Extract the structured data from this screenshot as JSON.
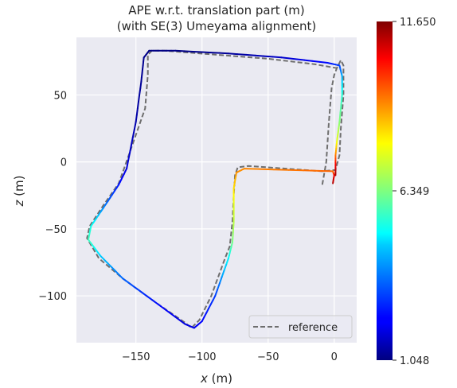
{
  "chart_data": {
    "type": "line",
    "title": "APE w.r.t. translation part (m)",
    "subtitle": "(with SE(3) Umeyama alignment)",
    "xlabel_var": "x",
    "xlabel_unit": "(m)",
    "ylabel_var": "z",
    "ylabel_unit": "(m)",
    "xlim": [
      -195,
      17
    ],
    "ylim": [
      -135,
      93
    ],
    "xticks": [
      -150,
      -100,
      -50,
      0
    ],
    "xtick_labels": [
      "−150",
      "−100",
      "−50",
      "0"
    ],
    "yticks": [
      50,
      0,
      -50,
      -100
    ],
    "ytick_labels": [
      "50",
      "0",
      "−50",
      "−100"
    ],
    "grid": true,
    "legend": {
      "placement": "lower-right",
      "entries": [
        "reference"
      ]
    },
    "colorbar": {
      "min": 1.048,
      "max": 11.65,
      "tick_labels": [
        "11.650",
        "6.349",
        "1.048"
      ],
      "colormap": "jet"
    },
    "series": [
      {
        "name": "reference",
        "style": "dashed",
        "color": "#6e6e6e",
        "points": [
          [
            -9,
            -17
          ],
          [
            -6,
            0
          ],
          [
            -4,
            30
          ],
          [
            -2,
            55
          ],
          [
            0,
            65
          ],
          [
            2,
            70
          ],
          [
            5,
            76
          ],
          [
            7,
            72
          ],
          [
            7,
            50
          ],
          [
            5,
            25
          ],
          [
            4,
            5
          ],
          [
            1,
            -6
          ],
          [
            -9,
            -7
          ],
          [
            -65,
            -3
          ],
          [
            -73,
            -4
          ],
          [
            -75,
            -10
          ],
          [
            -76,
            -25
          ],
          [
            -77,
            -45
          ],
          [
            -79,
            -63
          ],
          [
            -83,
            -73
          ],
          [
            -93,
            -100
          ],
          [
            -102,
            -118
          ],
          [
            -108,
            -124
          ],
          [
            -113,
            -120
          ],
          [
            -135,
            -105
          ],
          [
            -160,
            -87
          ],
          [
            -178,
            -72
          ],
          [
            -187,
            -57
          ],
          [
            -185,
            -48
          ],
          [
            -175,
            -33
          ],
          [
            -163,
            -16
          ],
          [
            -159,
            -5
          ],
          [
            -143,
            40
          ],
          [
            -141,
            65
          ],
          [
            -141,
            80
          ],
          [
            -138,
            83
          ],
          [
            -128,
            83
          ],
          [
            -50,
            77
          ],
          [
            -15,
            73
          ],
          [
            2,
            70
          ]
        ]
      },
      {
        "name": "",
        "style": "colored",
        "points": [
          [
            -1,
            -16,
            11.2
          ],
          [
            0,
            -10,
            10.5
          ],
          [
            -1,
            -7,
            9.3
          ],
          [
            -68,
            -5,
            8.9
          ],
          [
            -74,
            -8,
            8.8
          ],
          [
            -76,
            -20,
            8.0
          ],
          [
            -76,
            -32,
            7.4
          ],
          [
            -76,
            -45,
            7.0
          ],
          [
            -77,
            -60,
            6.3
          ],
          [
            -80,
            -72,
            5.0
          ],
          [
            -90,
            -100,
            3.0
          ],
          [
            -100,
            -119,
            2.4
          ],
          [
            -106,
            -124,
            2.2
          ],
          [
            -113,
            -121,
            2.0
          ],
          [
            -135,
            -105,
            2.5
          ],
          [
            -160,
            -87,
            3.4
          ],
          [
            -177,
            -70,
            4.5
          ],
          [
            -186,
            -58,
            5.7
          ],
          [
            -184,
            -48,
            5.3
          ],
          [
            -173,
            -32,
            3.6
          ],
          [
            -163,
            -17,
            2.6
          ],
          [
            -157,
            -5,
            2.0
          ],
          [
            -150,
            30,
            1.5
          ],
          [
            -146,
            60,
            1.3
          ],
          [
            -144,
            78,
            1.2
          ],
          [
            -140,
            83,
            1.1
          ],
          [
            -120,
            83,
            1.1
          ],
          [
            -80,
            81,
            1.3
          ],
          [
            -40,
            78,
            1.8
          ],
          [
            -5,
            74,
            2.5
          ],
          [
            4,
            72,
            3.0
          ],
          [
            6,
            64,
            4.2
          ],
          [
            6,
            50,
            5.4
          ],
          [
            4,
            30,
            6.4
          ],
          [
            2,
            15,
            7.5
          ],
          [
            1,
            5,
            9.0
          ],
          [
            1,
            -3,
            10.5
          ],
          [
            1,
            -10,
            11.3
          ]
        ]
      }
    ]
  }
}
